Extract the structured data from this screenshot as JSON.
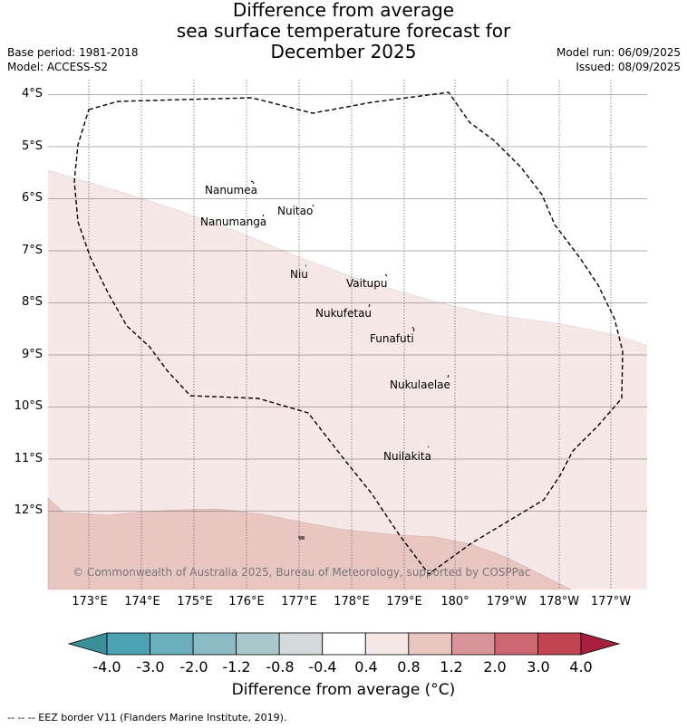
{
  "title": {
    "line1": "Difference from average",
    "line2": "sea surface temperature forecast for",
    "line3": "December 2025"
  },
  "info": {
    "base_period": "Base period: 1981-2018",
    "model": "Model: ACCESS-S2",
    "model_run": "Model run: 06/09/2025",
    "issued": "Issued: 08/09/2025"
  },
  "map": {
    "lat_labels": [
      "4°S",
      "5°S",
      "6°S",
      "7°S",
      "8°S",
      "9°S",
      "10°S",
      "11°S",
      "12°S"
    ],
    "lon_labels": [
      "173°E",
      "174°E",
      "175°E",
      "176°E",
      "177°E",
      "178°E",
      "179°E",
      "180°",
      "179°W",
      "178°W",
      "177°W"
    ],
    "islands": [
      "Nanumea",
      "Nuitao",
      "Nanumanga",
      "Niu",
      "Vaitupu",
      "Nukufetau",
      "Funafuti",
      "Nukulaelae",
      "Nuilakita"
    ],
    "anomaly_colors": {
      "band_0.4_0.8": "#f5e8e6",
      "band_0.8_1.2": "#e8c6c2"
    },
    "border_style": "dashed"
  },
  "copyright": "© Commonwealth of Australia 2025, Bureau of Meteorology, supported by COSPPac",
  "colorbar": {
    "ticks": [
      "-4.0",
      "-3.0",
      "-2.0",
      "-1.2",
      "-0.8",
      "-0.4",
      "0.4",
      "0.8",
      "1.2",
      "2.0",
      "3.0",
      "4.0"
    ],
    "colors": [
      "#3a8f99",
      "#4aa2b3",
      "#6aadbb",
      "#8abbc5",
      "#a8c8cc",
      "#d2dadc",
      "#ffffff",
      "#f5e8e6",
      "#e8c6c2",
      "#d9939a",
      "#cc6670",
      "#c04452",
      "#a81f3d"
    ],
    "label": "Difference from average (°C)"
  },
  "footer": "--  --  -- EEZ border V11 (Flanders Marine Institute, 2019)."
}
